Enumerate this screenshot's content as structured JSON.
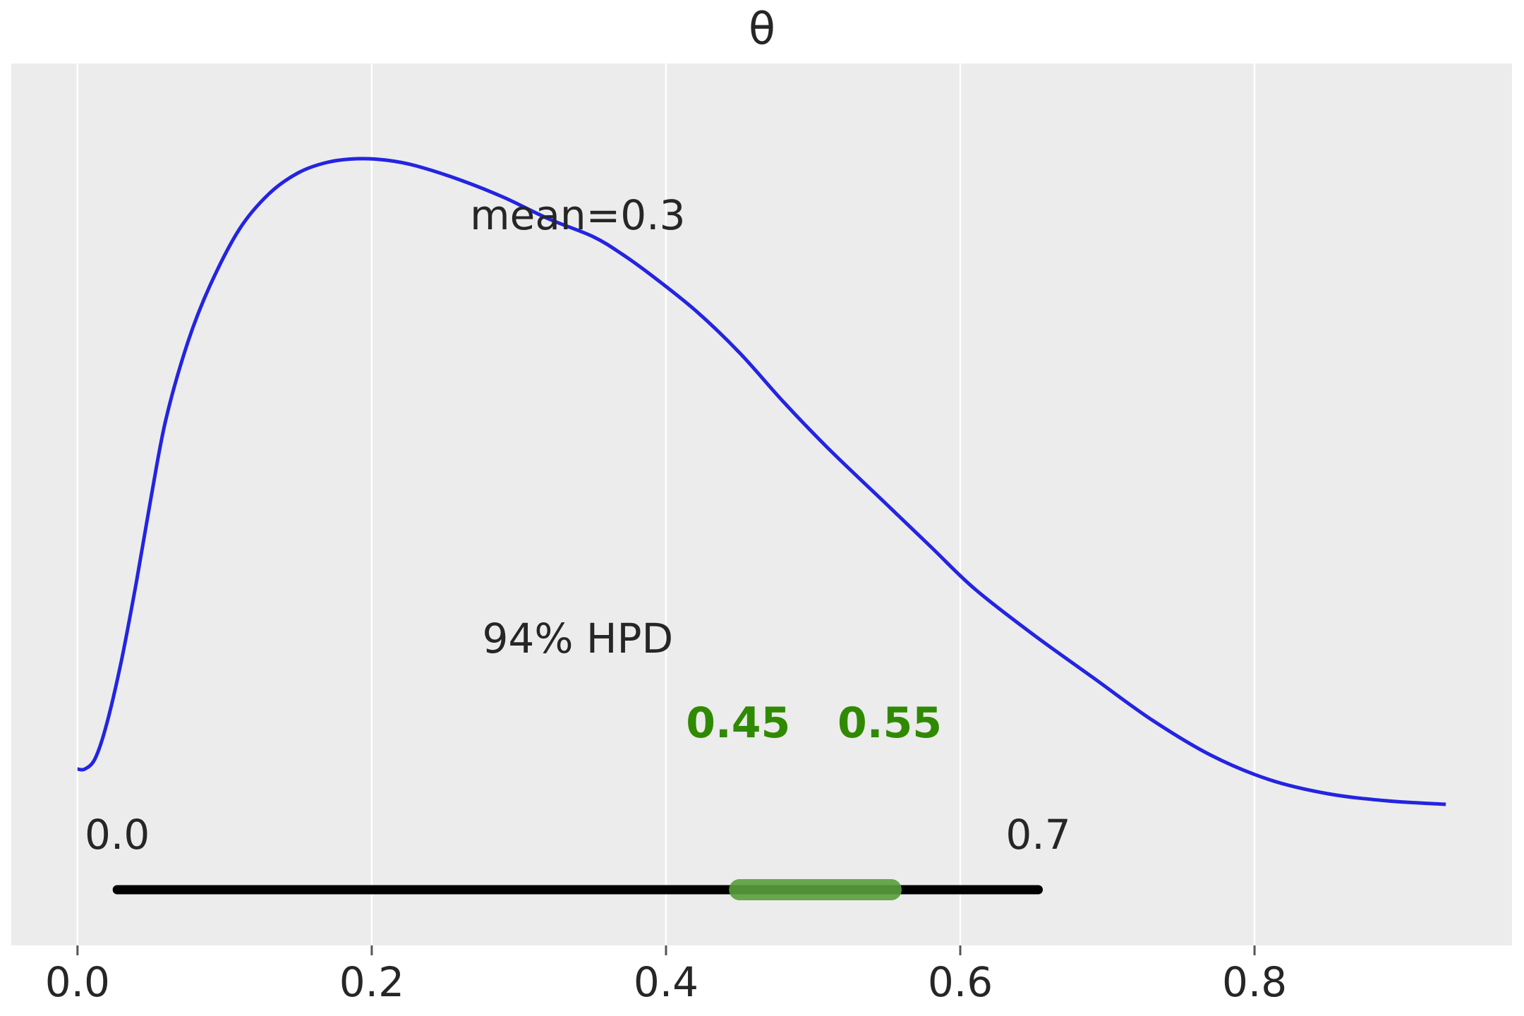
{
  "chart_data": {
    "type": "line",
    "title": "θ",
    "xlabel": "",
    "ylabel": "",
    "xlim": [
      -0.045,
      0.975
    ],
    "x_ticks": [
      "0.0",
      "0.2",
      "0.4",
      "0.6",
      "0.8"
    ],
    "x_tick_values": [
      0.0,
      0.2,
      0.4,
      0.6,
      0.8
    ],
    "grid": "vertical",
    "background": "#ececec",
    "series": [
      {
        "color": "#2424e0",
        "x": [
          0.0,
          0.005,
          0.012,
          0.02,
          0.03,
          0.04,
          0.05,
          0.06,
          0.075,
          0.09,
          0.11,
          0.13,
          0.15,
          0.17,
          0.19,
          0.21,
          0.23,
          0.26,
          0.29,
          0.32,
          0.35,
          0.37,
          0.39,
          0.42,
          0.45,
          0.48,
          0.51,
          0.55,
          0.58,
          0.61,
          0.65,
          0.69,
          0.73,
          0.77,
          0.81,
          0.85,
          0.89,
          0.93
        ],
        "y": [
          0.185,
          0.185,
          0.2,
          0.25,
          0.34,
          0.45,
          0.57,
          0.68,
          0.79,
          0.87,
          0.95,
          1.0,
          1.03,
          1.045,
          1.05,
          1.048,
          1.04,
          1.02,
          0.995,
          0.965,
          0.94,
          0.915,
          0.885,
          0.835,
          0.775,
          0.705,
          0.64,
          0.56,
          0.5,
          0.44,
          0.375,
          0.315,
          0.255,
          0.205,
          0.17,
          0.15,
          0.14,
          0.135
        ]
      }
    ],
    "annotations": {
      "mean_label": "mean=0.3",
      "hpd_label": "94% HPD",
      "hpd_left_label": "0.0",
      "hpd_right_label": "0.7",
      "rope_left_label": "0.45",
      "rope_right_label": "0.55",
      "mean_label_x": 0.34,
      "hpd_label_x": 0.34
    },
    "hpd_interval": [
      0.027,
      0.653
    ],
    "rope_interval": [
      0.45,
      0.553
    ],
    "colors": {
      "hpd_bar": "#000000",
      "rope_bar": "#5a9e3c",
      "rope_text": "#2f8a00",
      "grid": "#ffffff",
      "text": "#262626"
    }
  }
}
